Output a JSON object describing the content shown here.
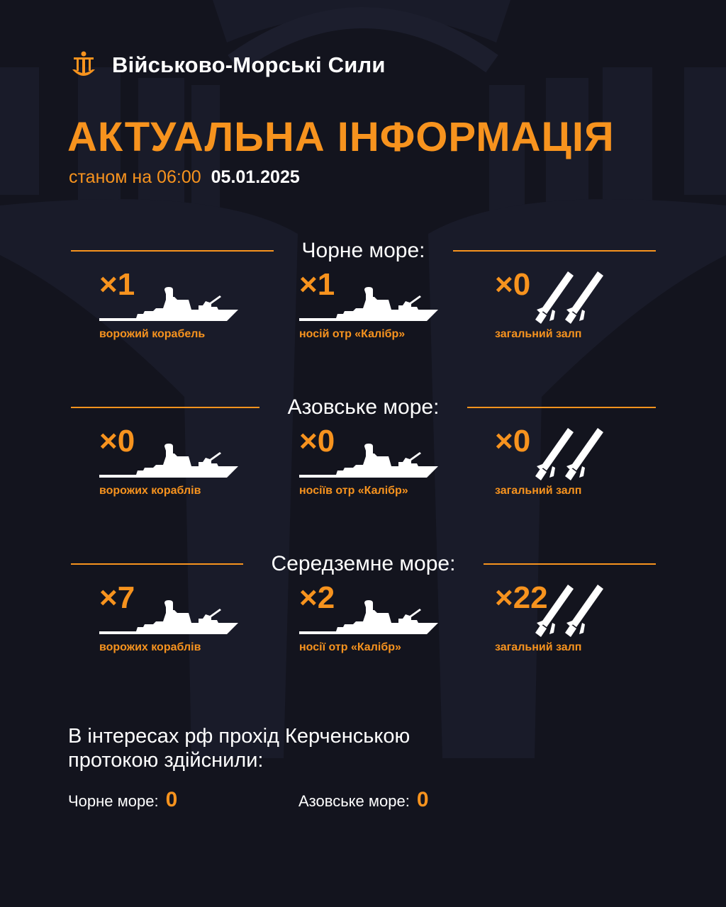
{
  "brand": {
    "name": "Військово-Морські Сили",
    "logo_icon": "trident-anchor-icon"
  },
  "title": "АКТУАЛЬНА ІНФОРМАЦІЯ",
  "subtitle": {
    "time": "станом на 06:00",
    "date": "05.01.2025"
  },
  "colors": {
    "accent": "#f7931e",
    "background": "#13141e",
    "text": "#ffffff"
  },
  "seas": [
    {
      "name": "Чорне море:",
      "items": [
        {
          "count": "×1",
          "label": "ворожий корабель",
          "icon": "ship-icon"
        },
        {
          "count": "×1",
          "label": "носій отр «Калібр»",
          "icon": "ship-icon"
        },
        {
          "count": "×0",
          "label": "загальний залп",
          "icon": "missiles-icon"
        }
      ]
    },
    {
      "name": "Азовське море:",
      "items": [
        {
          "count": "×0",
          "label": "ворожих кораблів",
          "icon": "ship-icon"
        },
        {
          "count": "×0",
          "label": "носіїв отр «Калібр»",
          "icon": "ship-icon"
        },
        {
          "count": "×0",
          "label": "загальний залп",
          "icon": "missiles-icon"
        }
      ]
    },
    {
      "name": "Середземне море:",
      "items": [
        {
          "count": "×7",
          "label": "ворожих кораблів",
          "icon": "ship-icon"
        },
        {
          "count": "×2",
          "label": "носії отр «Калібр»",
          "icon": "ship-icon"
        },
        {
          "count": "×22",
          "label": "загальний залп",
          "icon": "missiles-icon"
        }
      ]
    }
  ],
  "kerch": {
    "text": "В інтересах рф прохід Керченською протокою здійснили:",
    "black_sea": {
      "label": "Чорне море:",
      "value": "0"
    },
    "azov_sea": {
      "label": "Азовське море:",
      "value": "0"
    }
  }
}
